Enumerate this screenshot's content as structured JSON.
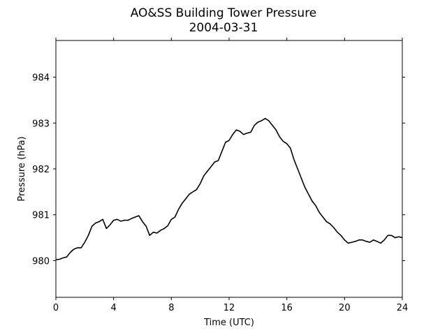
{
  "chart_data": {
    "type": "line",
    "title": "AO&SS Building Tower Pressure",
    "subtitle": "2004-03-31",
    "xlabel": "Time (UTC)",
    "ylabel": "Pressure (hPa)",
    "xlim": [
      0,
      24
    ],
    "ylim": [
      979.2,
      984.8
    ],
    "xticks": [
      0,
      4,
      8,
      12,
      16,
      20,
      24
    ],
    "yticks": [
      980,
      981,
      982,
      983,
      984
    ],
    "grid": false,
    "line_color": "#000000",
    "series": [
      {
        "x": [
          0,
          0.25,
          0.5,
          0.75,
          1,
          1.25,
          1.5,
          1.75,
          2,
          2.25,
          2.5,
          2.75,
          3,
          3.25,
          3.5,
          3.75,
          4,
          4.25,
          4.5,
          4.75,
          5,
          5.25,
          5.5,
          5.75,
          6,
          6.25,
          6.5,
          6.75,
          7,
          7.25,
          7.5,
          7.75,
          8,
          8.25,
          8.5,
          8.75,
          9,
          9.25,
          9.5,
          9.75,
          10,
          10.25,
          10.5,
          10.75,
          11,
          11.25,
          11.5,
          11.75,
          12,
          12.25,
          12.5,
          12.75,
          13,
          13.25,
          13.5,
          13.75,
          14,
          14.25,
          14.5,
          14.75,
          15,
          15.25,
          15.5,
          15.75,
          16,
          16.25,
          16.5,
          16.75,
          17,
          17.25,
          17.5,
          17.75,
          18,
          18.25,
          18.5,
          18.75,
          19,
          19.25,
          19.5,
          19.75,
          20,
          20.25,
          20.5,
          20.75,
          21,
          21.25,
          21.5,
          21.75,
          22,
          22.25,
          22.5,
          22.75,
          23,
          23.25,
          23.5,
          23.75,
          24
        ],
        "y": [
          980.02,
          980.03,
          980.06,
          980.08,
          980.18,
          980.25,
          980.28,
          980.28,
          980.4,
          980.55,
          980.75,
          980.82,
          980.85,
          980.9,
          980.7,
          980.78,
          980.88,
          980.9,
          980.86,
          980.88,
          980.88,
          980.92,
          980.95,
          980.98,
          980.85,
          980.75,
          980.55,
          980.62,
          980.6,
          980.66,
          980.7,
          980.76,
          980.9,
          980.95,
          981.12,
          981.25,
          981.35,
          981.45,
          981.5,
          981.55,
          981.68,
          981.85,
          981.95,
          982.05,
          982.15,
          982.18,
          982.38,
          982.58,
          982.62,
          982.75,
          982.85,
          982.82,
          982.75,
          982.78,
          982.8,
          982.95,
          983.02,
          983.05,
          983.1,
          983.05,
          982.95,
          982.85,
          982.7,
          982.6,
          982.55,
          982.45,
          982.2,
          982.0,
          981.8,
          981.6,
          981.45,
          981.3,
          981.2,
          981.05,
          980.95,
          980.85,
          980.8,
          980.72,
          980.62,
          980.55,
          980.45,
          980.38,
          980.4,
          980.42,
          980.45,
          980.45,
          980.42,
          980.4,
          980.45,
          980.42,
          980.38,
          980.45,
          980.55,
          980.55,
          980.5,
          980.52,
          980.5
        ]
      }
    ]
  }
}
